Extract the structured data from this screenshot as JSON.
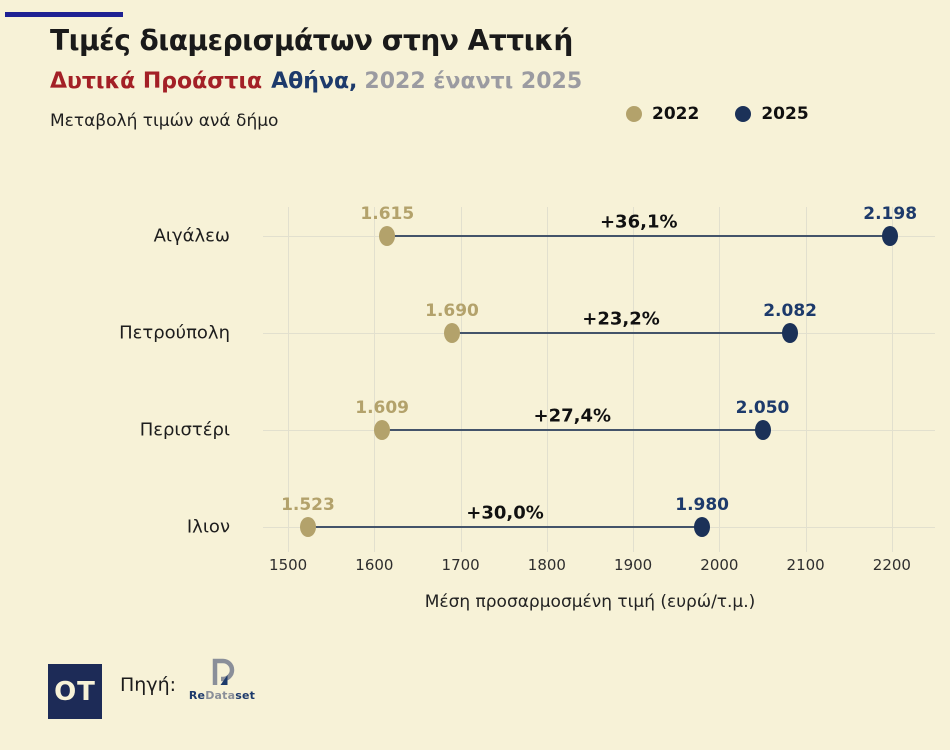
{
  "page": {
    "background": "#F7F2D7"
  },
  "header": {
    "accent_color": "#1E2193",
    "title": "Τιμές διαμερισμάτων στην Αττική",
    "subtitle_region": "Δυτικά Προάστια",
    "subtitle_city": "Αθήνα,",
    "subtitle_years": "2022 έναντι 2025",
    "description": "Μεταβολή τιμών ανά δήμο",
    "region_color": "#A32026",
    "city_color": "#1D3A6B",
    "years_color": "#9B9BA1"
  },
  "chart_data": {
    "type": "dumbbell",
    "title": "Τιμές διαμερισμάτων στην Αττική",
    "subtitle": "Δυτικά Προάστια Αθήνα, 2022 έναντι 2025",
    "categories": [
      "Αιγάλεω",
      "Πετρούπολη",
      "Περιστέρι",
      "Ιλιον"
    ],
    "series": [
      {
        "name": "2022",
        "color": "#B3A26B",
        "values": [
          1615,
          1690,
          1609,
          1523
        ],
        "value_labels": [
          "1.615",
          "1.690",
          "1.609",
          "1.523"
        ]
      },
      {
        "name": "2025",
        "color": "#1B3158",
        "values": [
          2198,
          2082,
          2050,
          1980
        ],
        "value_labels": [
          "2.198",
          "2.082",
          "2.050",
          "1.980"
        ]
      }
    ],
    "change_labels": [
      "+36,1%",
      "+23,2%",
      "+27,4%",
      "+30,0%"
    ],
    "xlabel": "Μέση προσαρμοσμένη τιμή (ευρώ/τ.μ.)",
    "x_ticks": [
      1500,
      1600,
      1700,
      1800,
      1900,
      2000,
      2100,
      2200
    ],
    "xlim": [
      1450,
      2250
    ],
    "grid": true,
    "legend_position": "top-right",
    "connector_color": "#44546A",
    "gridline_color": "#E2E0CE"
  },
  "footer": {
    "logo_text": "OT",
    "source_label": "Πηγή:",
    "source_name": {
      "part1": "Re",
      "part2": "Data",
      "part3": "set"
    }
  }
}
